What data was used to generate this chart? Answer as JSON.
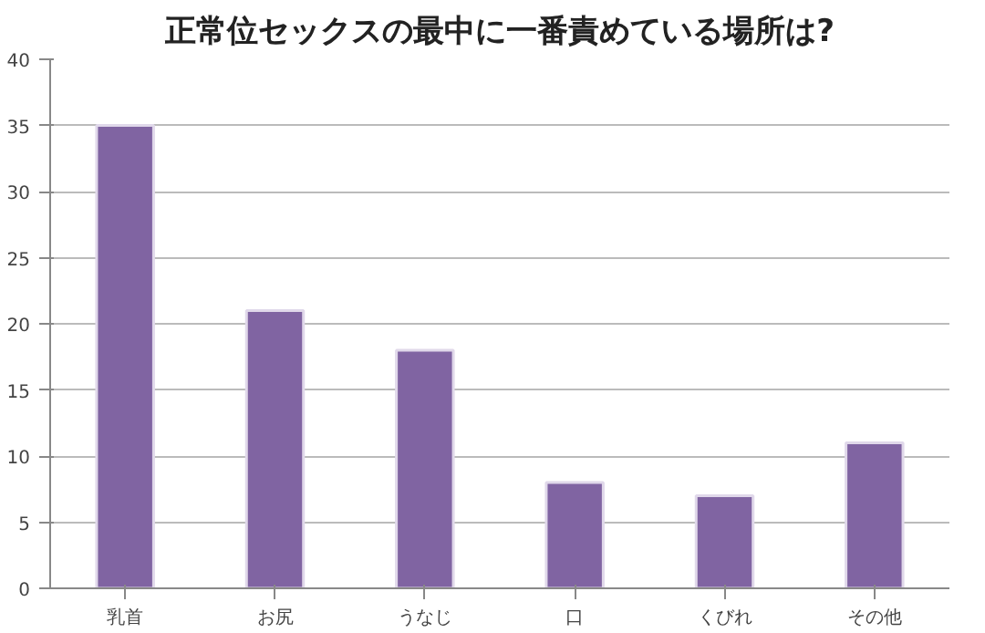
{
  "chart_data": {
    "type": "bar",
    "title": "正常位セックスの最中に一番責めている場所は?",
    "categories": [
      "乳首",
      "お尻",
      "うなじ",
      "口",
      "くびれ",
      "その他"
    ],
    "values": [
      35,
      21,
      18,
      8,
      7,
      11
    ],
    "color": "#8064a2",
    "ylim": [
      0,
      40
    ],
    "yticks": [
      0,
      5,
      10,
      15,
      20,
      25,
      30,
      35,
      40
    ],
    "grid": "y"
  }
}
